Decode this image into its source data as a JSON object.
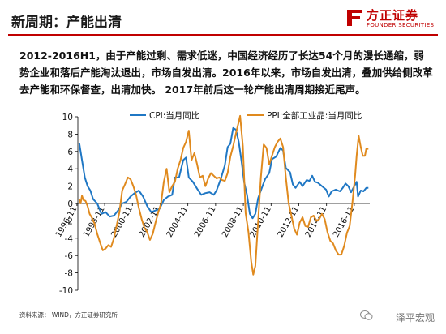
{
  "header": {
    "title": "新周期：产能出清"
  },
  "logo": {
    "cn": "方正证券",
    "en": "FOUNDER SECURITIES"
  },
  "paragraph": "2012-2016H1，由于产能过剩、需求低迷，中国经济经历了长达54个月的漫长通缩，弱势企业和落后产能淘汰退出，市场自发出清。2016年以来，市场自发出清，叠加供给侧改革去产能和环保督查，出清加快。 2017年前后这一轮产能出清周期接近尾声。",
  "footer": {
    "source": "资料来源： WIND，方正证券研究所",
    "watermark": "泽平宏观"
  },
  "colors": {
    "cpi": "#1f77c4",
    "ppi": "#e08a1e",
    "accent": "#c00000"
  },
  "chart_data": {
    "type": "line",
    "ylim": [
      -10,
      10
    ],
    "yticks": [
      -10,
      -8,
      -6,
      -4,
      -2,
      0,
      2,
      4,
      6,
      8,
      10
    ],
    "xlim": [
      1996.9,
      2017.95
    ],
    "xtick_labels": [
      "1996-11",
      "1998-11",
      "2000-11",
      "2002-11",
      "2004-11",
      "2006-11",
      "2008-11",
      "2010-11",
      "2012-11",
      "2014-11",
      "2016-11"
    ],
    "legend_position": "top",
    "series": [
      {
        "name": "CPI:当月同比",
        "points": [
          [
            1997.0,
            7.0
          ],
          [
            1997.2,
            5.0
          ],
          [
            1997.4,
            3.0
          ],
          [
            1997.6,
            2.0
          ],
          [
            1997.8,
            1.5
          ],
          [
            1998.0,
            0.5
          ],
          [
            1998.3,
            0.0
          ],
          [
            1998.6,
            -1.2
          ],
          [
            1998.9,
            -1.0
          ],
          [
            1999.2,
            -1.5
          ],
          [
            1999.5,
            -1.4
          ],
          [
            1999.8,
            -0.8
          ],
          [
            2000.1,
            0.0
          ],
          [
            2000.4,
            0.2
          ],
          [
            2000.7,
            0.8
          ],
          [
            2001.0,
            1.2
          ],
          [
            2001.3,
            1.5
          ],
          [
            2001.6,
            0.8
          ],
          [
            2001.9,
            -0.3
          ],
          [
            2002.2,
            -1.0
          ],
          [
            2002.5,
            -0.8
          ],
          [
            2002.8,
            -0.6
          ],
          [
            2003.1,
            0.4
          ],
          [
            2003.4,
            0.8
          ],
          [
            2003.7,
            1.0
          ],
          [
            2003.9,
            3.0
          ],
          [
            2004.2,
            3.0
          ],
          [
            2004.5,
            5.0
          ],
          [
            2004.7,
            5.3
          ],
          [
            2004.9,
            3.0
          ],
          [
            2005.2,
            2.5
          ],
          [
            2005.5,
            1.7
          ],
          [
            2005.8,
            1.0
          ],
          [
            2006.1,
            1.2
          ],
          [
            2006.4,
            1.3
          ],
          [
            2006.7,
            1.0
          ],
          [
            2006.9,
            1.5
          ],
          [
            2007.2,
            2.8
          ],
          [
            2007.5,
            4.4
          ],
          [
            2007.7,
            6.5
          ],
          [
            2007.9,
            6.9
          ],
          [
            2008.1,
            8.7
          ],
          [
            2008.3,
            8.5
          ],
          [
            2008.5,
            7.1
          ],
          [
            2008.7,
            4.9
          ],
          [
            2008.9,
            2.4
          ],
          [
            2009.1,
            1.0
          ],
          [
            2009.3,
            -1.2
          ],
          [
            2009.5,
            -1.7
          ],
          [
            2009.7,
            -1.2
          ],
          [
            2009.9,
            0.6
          ],
          [
            2010.1,
            1.5
          ],
          [
            2010.4,
            2.8
          ],
          [
            2010.7,
            3.5
          ],
          [
            2010.9,
            5.1
          ],
          [
            2011.2,
            5.4
          ],
          [
            2011.5,
            6.4
          ],
          [
            2011.7,
            6.1
          ],
          [
            2011.9,
            4.1
          ],
          [
            2012.2,
            3.6
          ],
          [
            2012.4,
            2.2
          ],
          [
            2012.6,
            1.8
          ],
          [
            2012.9,
            2.5
          ],
          [
            2013.1,
            2.0
          ],
          [
            2013.4,
            2.7
          ],
          [
            2013.6,
            2.6
          ],
          [
            2013.8,
            3.2
          ],
          [
            2014.0,
            2.5
          ],
          [
            2014.2,
            2.4
          ],
          [
            2014.5,
            2.0
          ],
          [
            2014.8,
            1.6
          ],
          [
            2015.0,
            0.8
          ],
          [
            2015.2,
            1.4
          ],
          [
            2015.5,
            1.6
          ],
          [
            2015.8,
            1.4
          ],
          [
            2016.0,
            1.8
          ],
          [
            2016.2,
            2.3
          ],
          [
            2016.4,
            2.0
          ],
          [
            2016.6,
            1.3
          ],
          [
            2016.8,
            1.9
          ],
          [
            2017.0,
            2.5
          ],
          [
            2017.1,
            0.8
          ],
          [
            2017.3,
            1.5
          ],
          [
            2017.5,
            1.4
          ],
          [
            2017.7,
            1.8
          ],
          [
            2017.85,
            1.8
          ]
        ]
      },
      {
        "name": "PPI:全部工业品:当月同比",
        "points": [
          [
            1997.0,
            0.5
          ],
          [
            1997.1,
            0.0
          ],
          [
            1997.2,
            0.9
          ],
          [
            1997.3,
            0.4
          ],
          [
            1997.45,
            0.3
          ],
          [
            1997.6,
            -0.3
          ],
          [
            1997.75,
            -1.2
          ],
          [
            1997.9,
            -1.6
          ],
          [
            1998.1,
            -2.3
          ],
          [
            1998.3,
            -3.5
          ],
          [
            1998.5,
            -4.5
          ],
          [
            1998.7,
            -5.4
          ],
          [
            1998.9,
            -5.2
          ],
          [
            1999.1,
            -4.8
          ],
          [
            1999.3,
            -5.0
          ],
          [
            1999.5,
            -4.0
          ],
          [
            1999.7,
            -2.5
          ],
          [
            1999.9,
            -1.0
          ],
          [
            2000.1,
            1.5
          ],
          [
            2000.3,
            2.2
          ],
          [
            2000.5,
            3.0
          ],
          [
            2000.7,
            2.8
          ],
          [
            2000.9,
            2.0
          ],
          [
            2001.1,
            1.0
          ],
          [
            2001.3,
            -0.5
          ],
          [
            2001.5,
            -1.8
          ],
          [
            2001.7,
            -2.8
          ],
          [
            2001.9,
            -3.3
          ],
          [
            2002.1,
            -4.2
          ],
          [
            2002.3,
            -3.5
          ],
          [
            2002.5,
            -2.2
          ],
          [
            2002.7,
            -1.0
          ],
          [
            2002.9,
            0.0
          ],
          [
            2003.1,
            2.5
          ],
          [
            2003.3,
            4.0
          ],
          [
            2003.5,
            1.3
          ],
          [
            2003.7,
            2.0
          ],
          [
            2003.9,
            2.5
          ],
          [
            2004.1,
            4.0
          ],
          [
            2004.3,
            5.0
          ],
          [
            2004.5,
            6.4
          ],
          [
            2004.7,
            7.1
          ],
          [
            2004.9,
            8.4
          ],
          [
            2005.1,
            5.0
          ],
          [
            2005.3,
            5.8
          ],
          [
            2005.5,
            4.5
          ],
          [
            2005.7,
            3.0
          ],
          [
            2005.9,
            3.2
          ],
          [
            2006.1,
            2.0
          ],
          [
            2006.3,
            2.9
          ],
          [
            2006.5,
            3.5
          ],
          [
            2006.7,
            3.2
          ],
          [
            2006.9,
            2.9
          ],
          [
            2007.1,
            3.0
          ],
          [
            2007.3,
            2.7
          ],
          [
            2007.5,
            2.6
          ],
          [
            2007.7,
            3.5
          ],
          [
            2007.9,
            5.4
          ],
          [
            2008.1,
            6.6
          ],
          [
            2008.3,
            8.1
          ],
          [
            2008.5,
            9.4
          ],
          [
            2008.6,
            10.1
          ],
          [
            2008.8,
            6.6
          ],
          [
            2009.0,
            -1.1
          ],
          [
            2009.2,
            -3.3
          ],
          [
            2009.4,
            -6.7
          ],
          [
            2009.55,
            -8.2
          ],
          [
            2009.7,
            -7.2
          ],
          [
            2009.9,
            -2.1
          ],
          [
            2010.1,
            3.0
          ],
          [
            2010.3,
            6.8
          ],
          [
            2010.5,
            6.4
          ],
          [
            2010.7,
            4.5
          ],
          [
            2010.9,
            5.5
          ],
          [
            2011.1,
            6.5
          ],
          [
            2011.3,
            7.1
          ],
          [
            2011.5,
            7.5
          ],
          [
            2011.7,
            6.5
          ],
          [
            2011.9,
            3.0
          ],
          [
            2012.1,
            0.0
          ],
          [
            2012.3,
            -1.4
          ],
          [
            2012.5,
            -2.9
          ],
          [
            2012.7,
            -3.6
          ],
          [
            2012.9,
            -2.2
          ],
          [
            2013.1,
            -1.6
          ],
          [
            2013.3,
            -2.6
          ],
          [
            2013.5,
            -2.7
          ],
          [
            2013.7,
            -1.6
          ],
          [
            2013.9,
            -1.4
          ],
          [
            2014.1,
            -2.0
          ],
          [
            2014.3,
            -1.8
          ],
          [
            2014.5,
            -1.2
          ],
          [
            2014.7,
            -1.8
          ],
          [
            2014.9,
            -3.3
          ],
          [
            2015.1,
            -4.3
          ],
          [
            2015.3,
            -4.6
          ],
          [
            2015.5,
            -5.4
          ],
          [
            2015.7,
            -5.9
          ],
          [
            2015.9,
            -5.9
          ],
          [
            2016.1,
            -4.9
          ],
          [
            2016.3,
            -3.4
          ],
          [
            2016.5,
            -2.6
          ],
          [
            2016.7,
            0.1
          ],
          [
            2016.9,
            3.3
          ],
          [
            2017.0,
            5.5
          ],
          [
            2017.15,
            7.8
          ],
          [
            2017.3,
            6.5
          ],
          [
            2017.45,
            5.5
          ],
          [
            2017.6,
            5.5
          ],
          [
            2017.7,
            6.3
          ],
          [
            2017.85,
            6.3
          ]
        ]
      }
    ]
  }
}
